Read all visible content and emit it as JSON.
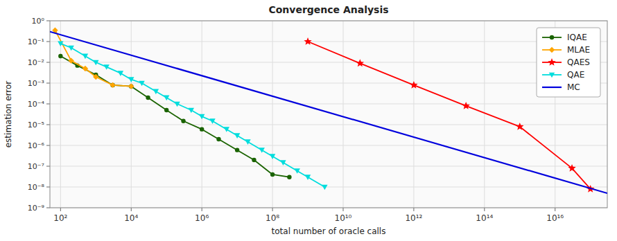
{
  "chart_data": {
    "type": "line",
    "title": "Convergence Analysis",
    "x_label": "total number of oracle calls",
    "y_label": "estimation error",
    "log": true,
    "grid": true,
    "legend": "upper right",
    "xlim": [
      50,
      3e+17
    ],
    "ylim": [
      1e-09,
      1.0
    ],
    "xticks": [
      {
        "value": 100.0,
        "label": "10²"
      },
      {
        "value": 10000.0,
        "label": "10⁴"
      },
      {
        "value": 1000000.0,
        "label": "10⁶"
      },
      {
        "value": 100000000.0,
        "label": "10⁸"
      },
      {
        "value": 10000000000.0,
        "label": "10¹⁰"
      },
      {
        "value": 1000000000000.0,
        "label": "10¹²"
      },
      {
        "value": 100000000000000.0,
        "label": "10¹⁴"
      },
      {
        "value": 1e+16,
        "label": "10¹⁶"
      }
    ],
    "yticks": [
      {
        "value": 1e-09,
        "label": "10⁻⁹"
      },
      {
        "value": 1e-08,
        "label": "10⁻⁸"
      },
      {
        "value": 1e-07,
        "label": "10⁻⁷"
      },
      {
        "value": 1e-06,
        "label": "10⁻⁶"
      },
      {
        "value": 1e-05,
        "label": "10⁻⁵"
      },
      {
        "value": 0.0001,
        "label": "10⁻⁴"
      },
      {
        "value": 0.001,
        "label": "10⁻³"
      },
      {
        "value": 0.01,
        "label": "10⁻²"
      },
      {
        "value": 0.1,
        "label": "10⁻¹"
      },
      {
        "value": 1,
        "label": "10⁰"
      }
    ],
    "series": [
      {
        "name": "IQAE",
        "color": "#1a6300",
        "marker": "circle",
        "x": [
          100.0,
          300.0,
          1000.0,
          3000.0,
          10000.0,
          30000.0,
          100000.0,
          300000.0,
          1000000.0,
          3000000.0,
          10000000.0,
          30000000.0,
          100000000.0,
          300000000.0
        ],
        "values": [
          0.02,
          0.007,
          0.0025,
          0.0008,
          0.0007,
          0.0002,
          5e-05,
          1.5e-05,
          6e-06,
          2e-06,
          6e-07,
          2e-07,
          4e-08,
          3e-08
        ]
      },
      {
        "name": "MLAE",
        "color": "#ffa500",
        "marker": "diamond",
        "x": [
          70.0,
          200.0,
          500.0,
          1000.0,
          3000.0,
          10000.0
        ],
        "values": [
          0.35,
          0.012,
          0.005,
          0.002,
          0.0008,
          0.0007
        ]
      },
      {
        "name": "QAES",
        "color": "#ff0000",
        "marker": "star",
        "x": [
          1000000000.0,
          30000000000.0,
          1000000000000.0,
          30000000000000.0,
          1000000000000000.0,
          3e+16,
          1e+17
        ],
        "values": [
          0.1,
          0.009,
          0.0008,
          8e-05,
          8e-06,
          8e-08,
          8e-09
        ]
      },
      {
        "name": "QAE",
        "color": "#00dddd",
        "marker": "triangle-down",
        "x": [
          100.0,
          200.0,
          500.0,
          1000.0,
          2000.0,
          5000.0,
          10000.0,
          20000.0,
          50000.0,
          100000.0,
          200000.0,
          500000.0,
          1000000.0,
          2000000.0,
          5000000.0,
          10000000.0,
          20000000.0,
          50000000.0,
          100000000.0,
          200000000.0,
          500000000.0,
          1000000000.0,
          3000000000.0
        ],
        "values": [
          0.08,
          0.05,
          0.02,
          0.01,
          0.006,
          0.003,
          0.0015,
          0.001,
          0.0004,
          0.0002,
          0.0001,
          5e-05,
          2.5e-05,
          1.5e-05,
          6e-06,
          3e-06,
          1.5e-06,
          6e-07,
          3e-07,
          1.5e-07,
          6e-08,
          3e-08,
          1e-08
        ]
      },
      {
        "name": "MC",
        "color": "#0000dd",
        "marker": "none",
        "x": [
          50.0,
          3e+17
        ],
        "values": [
          0.3,
          5e-09
        ]
      }
    ]
  }
}
